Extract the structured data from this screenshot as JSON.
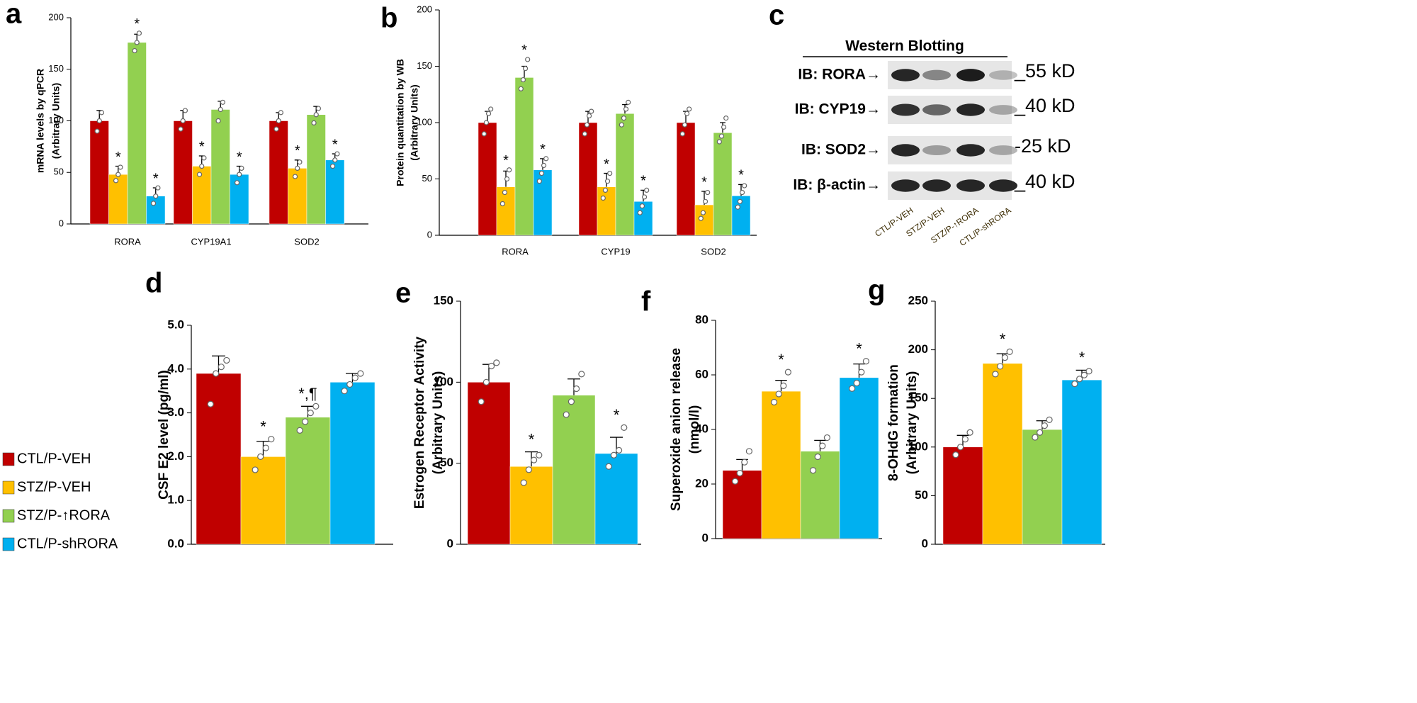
{
  "legend": [
    {
      "name": "CTL/P-VEH",
      "color": "#c00000"
    },
    {
      "name": "STZ/P-VEH",
      "color": "#ffc000"
    },
    {
      "name": "STZ/P-↑RORA",
      "color": "#92d050"
    },
    {
      "name": "CTL/P-shRORA",
      "color": "#00b0f0"
    }
  ],
  "blot": {
    "panel": "c",
    "title": "Western Blotting",
    "rows": [
      {
        "label": "IB: RORA→",
        "size": "_55 kD"
      },
      {
        "label": "IB: CYP19→",
        "size": "_40 kD"
      },
      {
        "label": "IB: SOD2→",
        "size": "-25 kD"
      },
      {
        "label": "IB: β-actin→",
        "size": "_40 kD"
      }
    ],
    "lanes": [
      "CTL/P-VEH",
      "STZ/P-VEH",
      "STZ/P-↑RORA",
      "CTL/P-shRORA"
    ]
  },
  "chart_data": [
    {
      "type": "bar",
      "panel": "a",
      "y_label": [
        "mRNA levels by qPCR",
        "(Arbitrary Units)"
      ],
      "categories": [
        "RORA",
        "CYP19A1",
        "SOD2"
      ],
      "ylim": [
        0,
        200
      ],
      "yticks": [
        0,
        50,
        100,
        150,
        200
      ],
      "series": [
        {
          "values": [
            100,
            100,
            100
          ],
          "errors": [
            10,
            10,
            8
          ],
          "points": [
            [
              90,
              100,
              108
            ],
            [
              92,
              100,
              110
            ],
            [
              92,
              100,
              108
            ]
          ],
          "annotations": [
            null,
            null,
            null
          ]
        },
        {
          "values": [
            48,
            56,
            54
          ],
          "errors": [
            8,
            10,
            8
          ],
          "points": [
            [
              42,
              48,
              55
            ],
            [
              48,
              56,
              64
            ],
            [
              46,
              54,
              60
            ]
          ],
          "annotations": [
            "*",
            "*",
            "*"
          ]
        },
        {
          "values": [
            176,
            111,
            106
          ],
          "errors": [
            8,
            8,
            8
          ],
          "points": [
            [
              168,
              176,
              185
            ],
            [
              100,
              111,
              118
            ],
            [
              98,
              106,
              112
            ]
          ],
          "annotations": [
            "*",
            null,
            null
          ]
        },
        {
          "values": [
            27,
            48,
            62
          ],
          "errors": [
            8,
            8,
            6
          ],
          "points": [
            [
              20,
              27,
              35
            ],
            [
              40,
              48,
              54
            ],
            [
              56,
              62,
              68
            ]
          ],
          "annotations": [
            "*",
            "*",
            "*"
          ]
        }
      ]
    },
    {
      "type": "bar",
      "panel": "b",
      "y_label": [
        "Protein quantitation by WB",
        "(Arbitrary Units)"
      ],
      "categories": [
        "RORA",
        "CYP19",
        "SOD2"
      ],
      "ylim": [
        0,
        200
      ],
      "yticks": [
        0,
        50,
        100,
        150,
        200
      ],
      "series": [
        {
          "values": [
            100,
            100,
            100
          ],
          "errors": [
            10,
            10,
            10
          ],
          "points": [
            [
              90,
              100,
              108,
              112
            ],
            [
              90,
              98,
              106,
              110
            ],
            [
              90,
              98,
              108,
              112
            ]
          ],
          "annotations": [
            null,
            null,
            null
          ]
        },
        {
          "values": [
            43,
            43,
            27
          ],
          "errors": [
            14,
            12,
            12
          ],
          "points": [
            [
              28,
              38,
              50,
              58
            ],
            [
              33,
              40,
              48,
              55
            ],
            [
              15,
              20,
              30,
              38
            ]
          ],
          "annotations": [
            "*",
            "*",
            "*"
          ]
        },
        {
          "values": [
            140,
            108,
            91
          ],
          "errors": [
            10,
            8,
            9
          ],
          "points": [
            [
              130,
              138,
              148,
              156
            ],
            [
              98,
              104,
              112,
              118
            ],
            [
              83,
              88,
              96,
              104
            ]
          ],
          "annotations": [
            "*",
            null,
            null
          ]
        },
        {
          "values": [
            58,
            30,
            35
          ],
          "errors": [
            10,
            10,
            10
          ],
          "points": [
            [
              48,
              55,
              62,
              68
            ],
            [
              20,
              26,
              34,
              40
            ],
            [
              25,
              30,
              38,
              44
            ]
          ],
          "annotations": [
            "*",
            "*",
            "*"
          ]
        }
      ]
    },
    {
      "type": "bar",
      "panel": "d",
      "y_label": [
        "CSF E2 level (pg/ml)"
      ],
      "categories": [
        null
      ],
      "ylim": [
        0,
        5
      ],
      "yticks": [
        {
          "value": 0,
          "label": "0.0"
        },
        {
          "value": 1,
          "label": "1.0"
        },
        {
          "value": 2,
          "label": "2.0"
        },
        {
          "value": 3,
          "label": "3.0"
        },
        {
          "value": 4,
          "label": "4.0"
        },
        {
          "value": 5,
          "label": "5.0"
        }
      ],
      "series": [
        {
          "values": [
            3.9
          ],
          "errors": [
            0.4
          ],
          "points": [
            [
              3.2,
              3.9,
              4.05,
              4.2
            ]
          ],
          "annotations": [
            null
          ]
        },
        {
          "values": [
            2.0
          ],
          "errors": [
            0.35
          ],
          "points": [
            [
              1.7,
              2.0,
              2.2,
              2.4
            ]
          ],
          "annotations": [
            "*"
          ]
        },
        {
          "values": [
            2.9
          ],
          "errors": [
            0.25
          ],
          "points": [
            [
              2.6,
              2.8,
              3.0,
              3.15
            ]
          ],
          "annotations": [
            "*,¶"
          ]
        },
        {
          "values": [
            3.7
          ],
          "errors": [
            0.2
          ],
          "points": [
            [
              3.5,
              3.65,
              3.8,
              3.9
            ]
          ],
          "annotations": [
            null
          ]
        }
      ]
    },
    {
      "type": "bar",
      "panel": "e",
      "y_label": [
        "Estrogen Receptor Activity",
        "(Arbitrary Units)"
      ],
      "categories": [
        null
      ],
      "ylim": [
        0,
        150
      ],
      "yticks": [
        0,
        50,
        100,
        150
      ],
      "series": [
        {
          "values": [
            100
          ],
          "errors": [
            11
          ],
          "points": [
            [
              88,
              100,
              110,
              112
            ]
          ],
          "annotations": [
            null
          ]
        },
        {
          "values": [
            48
          ],
          "errors": [
            9
          ],
          "points": [
            [
              38,
              46,
              52,
              55
            ]
          ],
          "annotations": [
            "*"
          ]
        },
        {
          "values": [
            92
          ],
          "errors": [
            10
          ],
          "points": [
            [
              80,
              88,
              96,
              105
            ]
          ],
          "annotations": [
            null
          ]
        },
        {
          "values": [
            56
          ],
          "errors": [
            10
          ],
          "points": [
            [
              48,
              55,
              58,
              72
            ]
          ],
          "annotations": [
            "*"
          ]
        }
      ]
    },
    {
      "type": "bar",
      "panel": "f",
      "y_label": [
        "Superoxide anion release",
        "(nmol/l)"
      ],
      "categories": [
        null
      ],
      "ylim": [
        0,
        80
      ],
      "yticks": [
        0,
        20,
        40,
        60,
        80
      ],
      "series": [
        {
          "values": [
            25
          ],
          "errors": [
            4
          ],
          "points": [
            [
              21,
              24,
              28,
              32
            ]
          ],
          "annotations": [
            null
          ]
        },
        {
          "values": [
            54
          ],
          "errors": [
            4
          ],
          "points": [
            [
              50,
              53,
              56,
              61
            ]
          ],
          "annotations": [
            "*"
          ]
        },
        {
          "values": [
            32
          ],
          "errors": [
            4
          ],
          "points": [
            [
              25,
              30,
              34,
              37
            ]
          ],
          "annotations": [
            null
          ]
        },
        {
          "values": [
            59
          ],
          "errors": [
            5
          ],
          "points": [
            [
              55,
              57,
              61,
              65
            ]
          ],
          "annotations": [
            "*"
          ]
        }
      ]
    },
    {
      "type": "bar",
      "panel": "g",
      "y_label": [
        "8-OHdG formation",
        "(Arbitrary Units)"
      ],
      "categories": [
        null
      ],
      "ylim": [
        0,
        250
      ],
      "yticks": [
        0,
        50,
        100,
        150,
        200,
        250
      ],
      "series": [
        {
          "values": [
            100
          ],
          "errors": [
            12
          ],
          "points": [
            [
              92,
              100,
              108,
              115
            ]
          ],
          "annotations": [
            null
          ]
        },
        {
          "values": [
            186
          ],
          "errors": [
            10
          ],
          "points": [
            [
              175,
              183,
              192,
              198
            ]
          ],
          "annotations": [
            "*"
          ]
        },
        {
          "values": [
            118
          ],
          "errors": [
            9
          ],
          "points": [
            [
              110,
              115,
              122,
              128
            ]
          ],
          "annotations": [
            null
          ]
        },
        {
          "values": [
            169
          ],
          "errors": [
            10
          ],
          "points": [
            [
              165,
              170,
              174,
              178
            ]
          ],
          "annotations": [
            "*"
          ]
        }
      ]
    }
  ]
}
